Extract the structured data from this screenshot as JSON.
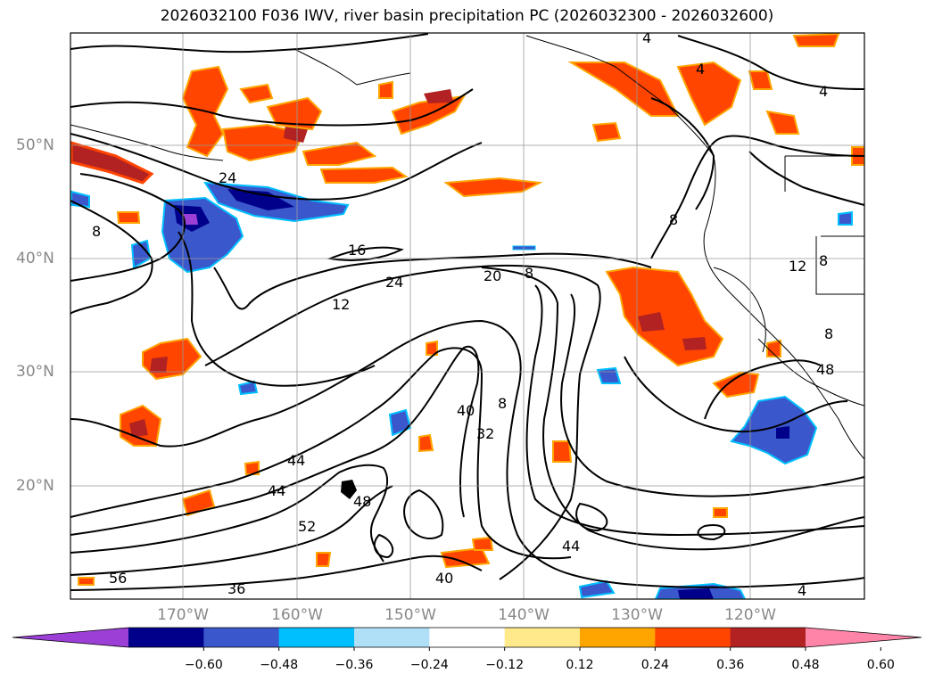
{
  "title": "2026032100 F036 IWV, river basin precipitation PC (2026032300 - 2026032600)",
  "lat_labels": [
    "50°N",
    "40°N",
    "30°N",
    "20°N"
  ],
  "lon_labels": [
    "170°W",
    "160°W",
    "150°W",
    "140°W",
    "130°W",
    "120°W"
  ],
  "colorbar": {
    "ticks": [
      "−0.60",
      "−0.48",
      "−0.36",
      "−0.24",
      "−0.12",
      "0.12",
      "0.24",
      "0.36",
      "0.48",
      "0.60"
    ],
    "colors": [
      "#9b3fd6",
      "#00008b",
      "#3b57cc",
      "#00bfff",
      "#b0e0f8",
      "#ffffff",
      "#ffe98a",
      "#ffa500",
      "#ff4500",
      "#b22222",
      "#ff85a8"
    ]
  },
  "contour_labels": [
    "4",
    "4",
    "4",
    "24",
    "8",
    "16",
    "12",
    "24",
    "20",
    "8",
    "8",
    "12",
    "8",
    "8",
    "48",
    "40",
    "32",
    "8",
    "44",
    "44",
    "48",
    "52",
    "56",
    "36",
    "44",
    "40",
    "4"
  ]
}
